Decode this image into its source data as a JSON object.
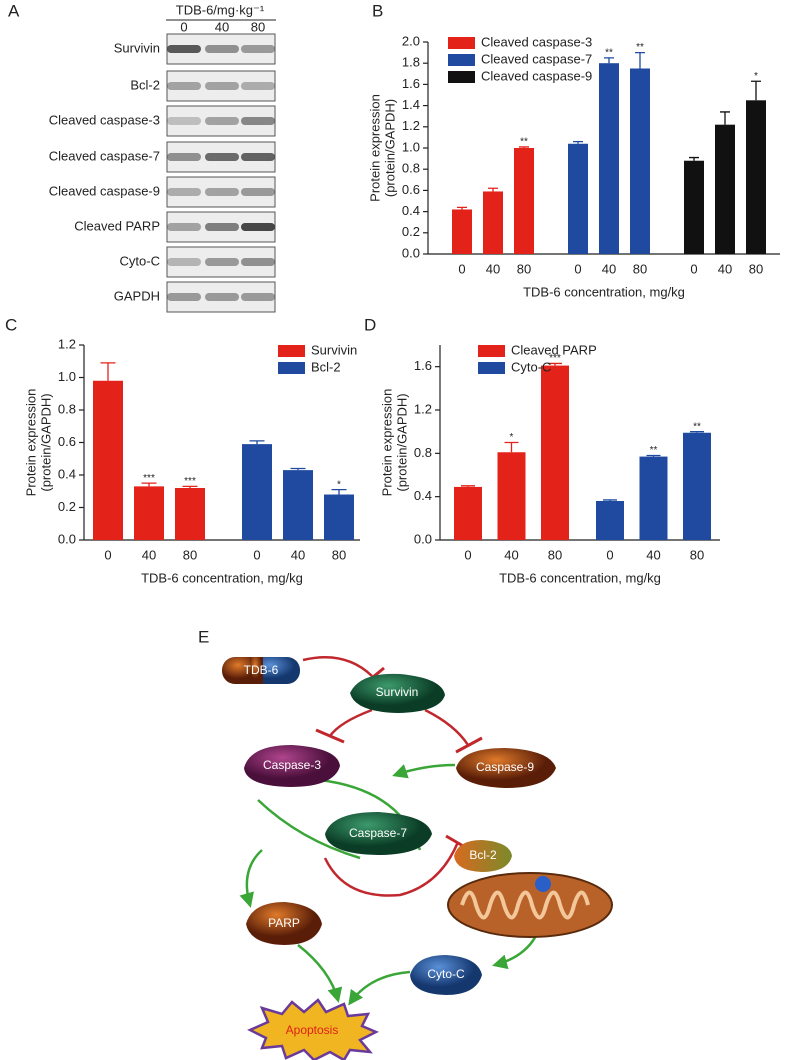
{
  "panel_labels": [
    "A",
    "B",
    "C",
    "D",
    "E"
  ],
  "blot": {
    "header": "TDB-6/mg·kg⁻¹",
    "lanes": [
      "0",
      "40",
      "80"
    ],
    "rows": [
      "Survivin",
      "Bcl-2",
      "Cleaved caspase-3",
      "Cleaved caspase-7",
      "Cleaved caspase-9",
      "Cleaved PARP",
      "Cyto-C",
      "GAPDH"
    ]
  },
  "chart_data": [
    {
      "type": "bar",
      "categories": [
        "0",
        "40",
        "80"
      ],
      "xlabel": "TDB-6 concentration, mg/kg",
      "ylabel": [
        "Protein expression",
        "(protein/GAPDH)"
      ],
      "ylim": [
        0,
        2.0
      ],
      "yticks": [
        {
          "value": 0,
          "label": "0.0"
        },
        {
          "value": 0.2,
          "label": "0.2"
        },
        {
          "value": 0.4,
          "label": "0.4"
        },
        {
          "value": 0.6,
          "label": "0.6"
        },
        {
          "value": 0.8,
          "label": "0.8"
        },
        {
          "value": 1.0,
          "label": "1.0"
        },
        {
          "value": 1.2,
          "label": "1.2"
        },
        {
          "value": 1.4,
          "label": "1.4"
        },
        {
          "value": 1.6,
          "label": "1.6"
        },
        {
          "value": 1.8,
          "label": "1.8"
        },
        {
          "value": 2.0,
          "label": "2.0"
        }
      ],
      "series": [
        {
          "name": "Cleaved caspase-3",
          "color": "#e32219",
          "values": [
            0.42,
            0.59,
            1.0
          ],
          "errors": [
            0.02,
            0.03,
            0.01
          ],
          "annotations": [
            null,
            null,
            "**"
          ]
        },
        {
          "name": "Cleaved caspase-7",
          "color": "#1f4aa0",
          "values": [
            1.04,
            1.8,
            1.75
          ],
          "errors": [
            0.02,
            0.05,
            0.15
          ],
          "annotations": [
            null,
            "**",
            "**"
          ]
        },
        {
          "name": "Cleaved caspase-9",
          "color": "#111111",
          "values": [
            0.88,
            1.22,
            1.45
          ],
          "errors": [
            0.03,
            0.12,
            0.18
          ],
          "annotations": [
            null,
            null,
            "*"
          ]
        }
      ]
    },
    {
      "type": "bar",
      "categories": [
        "0",
        "40",
        "80"
      ],
      "xlabel": "TDB-6 concentration, mg/kg",
      "ylabel": [
        "Protein expression",
        "(protein/GAPDH)"
      ],
      "ylim": [
        0,
        1.2
      ],
      "yticks": [
        {
          "value": 0,
          "label": "0.0"
        },
        {
          "value": 0.2,
          "label": "0.2"
        },
        {
          "value": 0.4,
          "label": "0.4"
        },
        {
          "value": 0.6,
          "label": "0.6"
        },
        {
          "value": 0.8,
          "label": "0.8"
        },
        {
          "value": 1.0,
          "label": "1.0"
        },
        {
          "value": 1.2,
          "label": "1.2"
        }
      ],
      "series": [
        {
          "name": "Survivin",
          "color": "#e32219",
          "values": [
            0.98,
            0.33,
            0.32
          ],
          "errors": [
            0.11,
            0.02,
            0.01
          ],
          "annotations": [
            null,
            "***",
            "***"
          ]
        },
        {
          "name": "Bcl-2",
          "color": "#1f4aa0",
          "values": [
            0.59,
            0.43,
            0.28
          ],
          "errors": [
            0.02,
            0.01,
            0.03
          ],
          "annotations": [
            null,
            null,
            "*"
          ]
        }
      ]
    },
    {
      "type": "bar",
      "categories": [
        "0",
        "40",
        "80"
      ],
      "xlabel": "TDB-6 concentration, mg/kg",
      "ylabel": [
        "Protein expression",
        "(protein/GAPDH)"
      ],
      "ylim": [
        0,
        1.8
      ],
      "yticks": [
        {
          "value": 0,
          "label": "0.0"
        },
        {
          "value": 0.4,
          "label": "0.4"
        },
        {
          "value": 0.8,
          "label": "0.8"
        },
        {
          "value": 1.2,
          "label": "1.2"
        },
        {
          "value": 1.6,
          "label": "1.6"
        }
      ],
      "series": [
        {
          "name": "Cleaved PARP",
          "color": "#e32219",
          "values": [
            0.49,
            0.81,
            1.61
          ],
          "errors": [
            0.01,
            0.09,
            0.02
          ],
          "annotations": [
            null,
            "*",
            "***"
          ]
        },
        {
          "name": "Cyto-C",
          "color": "#1f4aa0",
          "values": [
            0.36,
            0.77,
            0.99
          ],
          "errors": [
            0.01,
            0.01,
            0.01
          ],
          "annotations": [
            null,
            "**",
            "**"
          ]
        }
      ]
    }
  ],
  "pathway": {
    "nodes": [
      {
        "label": "TDB-6"
      },
      {
        "label": "Survivin"
      },
      {
        "label": "Caspase-9"
      },
      {
        "label": "Caspase-3"
      },
      {
        "label": "Caspase-7"
      },
      {
        "label": "Bcl-2"
      },
      {
        "label": "PARP"
      },
      {
        "label": "Cyto-C"
      },
      {
        "label": "Apoptosis"
      }
    ]
  }
}
